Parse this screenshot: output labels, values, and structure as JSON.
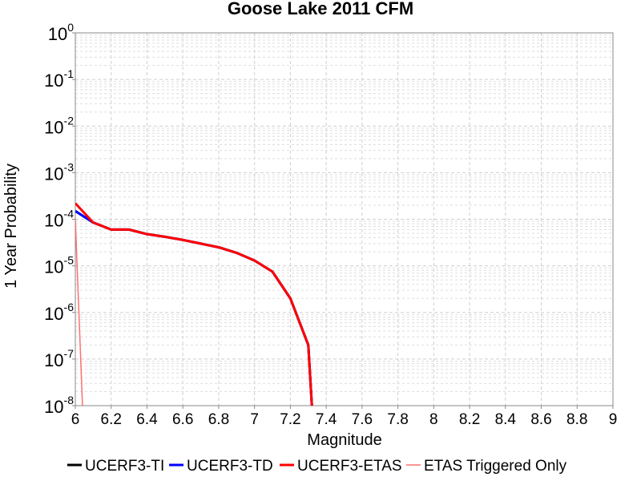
{
  "chart_data": {
    "type": "line",
    "title": "Goose Lake 2011 CFM",
    "xlabel": "Magnitude",
    "ylabel": "1 Year Probability",
    "xlim": [
      6,
      9
    ],
    "ylim": [
      1e-08,
      1
    ],
    "yscale": "log",
    "grid": true,
    "legend_position": "bottom",
    "x_ticks": [
      "6",
      "6.2",
      "6.4",
      "6.6",
      "6.8",
      "7",
      "7.2",
      "7.4",
      "7.6",
      "7.8",
      "8",
      "8.2",
      "8.4",
      "8.6",
      "8.8",
      "9"
    ],
    "y_ticks": [
      {
        "base": "10",
        "exp": "0",
        "value": 1
      },
      {
        "base": "10",
        "exp": "-1",
        "value": 0.1
      },
      {
        "base": "10",
        "exp": "-2",
        "value": 0.01
      },
      {
        "base": "10",
        "exp": "-3",
        "value": 0.001
      },
      {
        "base": "10",
        "exp": "-4",
        "value": 0.0001
      },
      {
        "base": "10",
        "exp": "-5",
        "value": 1e-05
      },
      {
        "base": "10",
        "exp": "-6",
        "value": 1e-06
      },
      {
        "base": "10",
        "exp": "-7",
        "value": 1e-07
      },
      {
        "base": "10",
        "exp": "-8",
        "value": 1e-08
      }
    ],
    "series": [
      {
        "name": "UCERF3-TI",
        "color": "#000000",
        "width": 3,
        "x": [
          6.0,
          6.1,
          6.2,
          6.3,
          6.4,
          6.5,
          6.6,
          6.7,
          6.8,
          6.9,
          7.0,
          7.1,
          7.2,
          7.3,
          7.32
        ],
        "y": [
          0.00015,
          8.5e-05,
          6e-05,
          6e-05,
          4.8e-05,
          4.2e-05,
          3.6e-05,
          3e-05,
          2.5e-05,
          1.9e-05,
          1.3e-05,
          7.5e-06,
          2e-06,
          2e-07,
          1e-08
        ]
      },
      {
        "name": "UCERF3-TD",
        "color": "#0000ff",
        "width": 3,
        "x": [
          6.0,
          6.1,
          6.2,
          6.3,
          6.4,
          6.5,
          6.6,
          6.7,
          6.8,
          6.9,
          7.0,
          7.1,
          7.2,
          7.3,
          7.32
        ],
        "y": [
          0.00015,
          8.5e-05,
          6e-05,
          6e-05,
          4.8e-05,
          4.2e-05,
          3.6e-05,
          3e-05,
          2.5e-05,
          1.9e-05,
          1.3e-05,
          7.5e-06,
          2e-06,
          2e-07,
          1e-08
        ]
      },
      {
        "name": "UCERF3-ETAS",
        "color": "#ff0000",
        "width": 3,
        "x": [
          6.0,
          6.1,
          6.2,
          6.3,
          6.4,
          6.5,
          6.6,
          6.7,
          6.8,
          6.9,
          7.0,
          7.1,
          7.2,
          7.3,
          7.32
        ],
        "y": [
          0.00022,
          8.5e-05,
          6e-05,
          6e-05,
          4.8e-05,
          4.2e-05,
          3.6e-05,
          3e-05,
          2.5e-05,
          1.9e-05,
          1.3e-05,
          7.5e-06,
          2e-06,
          2e-07,
          1e-08
        ]
      },
      {
        "name": "ETAS Triggered Only",
        "color": "#ff7070",
        "width": 1.5,
        "x": [
          6.0,
          6.04
        ],
        "y": [
          0.0001,
          1e-08
        ]
      }
    ]
  }
}
